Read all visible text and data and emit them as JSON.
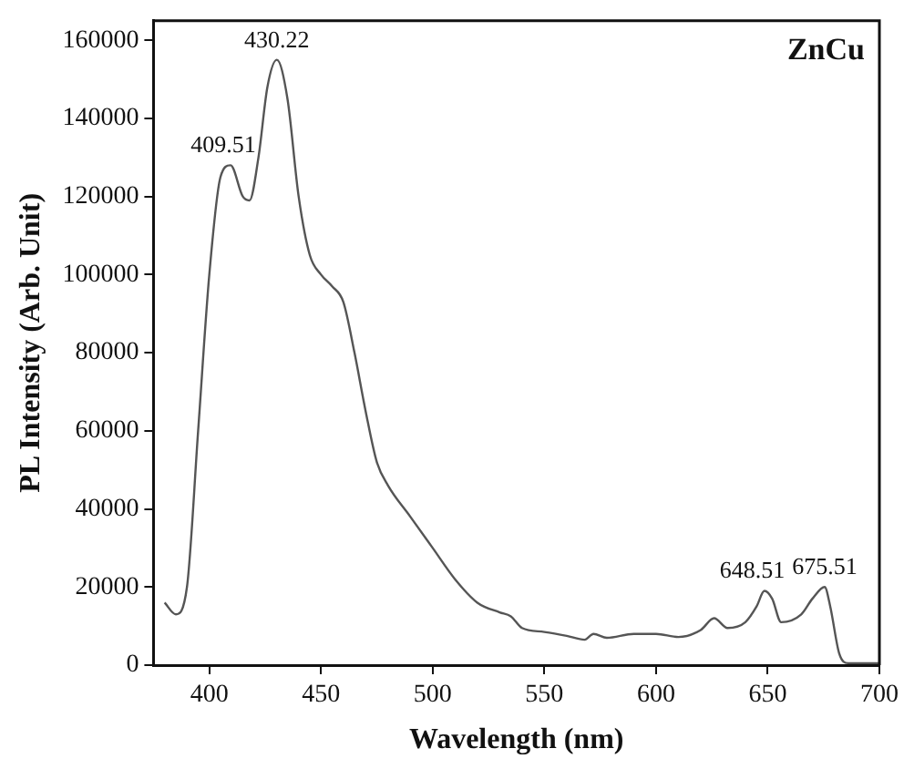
{
  "chart_data": {
    "type": "line",
    "title": "ZnCu",
    "xlabel": "Wavelength (nm)",
    "ylabel": "PL Intensity (Arb. Unit)",
    "xlim": [
      375,
      700
    ],
    "xticks": [
      400,
      450,
      500,
      550,
      600,
      650,
      700
    ],
    "ylim": [
      0,
      165000
    ],
    "yticks": [
      0,
      20000,
      40000,
      60000,
      80000,
      100000,
      120000,
      140000,
      160000
    ],
    "grid": false,
    "legend": false,
    "marker": "none",
    "line_style": "solid",
    "series": [
      {
        "color": "#555555",
        "x": [
          380,
          385,
          390,
          395,
          400,
          405,
          409.51,
          415,
          418,
          422,
          426,
          430.22,
          435,
          440,
          445,
          450,
          455,
          460,
          465,
          470,
          475,
          480,
          490,
          500,
          510,
          520,
          530,
          535,
          540,
          550,
          560,
          568,
          572,
          578,
          590,
          600,
          610,
          620,
          626,
          632,
          640,
          645,
          648.51,
          652,
          656,
          665,
          670,
          675.51,
          678,
          682,
          686,
          700
        ],
        "values": [
          16000,
          13000,
          20000,
          60000,
          100000,
          125000,
          128000,
          120000,
          119000,
          130000,
          148000,
          155000,
          145000,
          120000,
          105000,
          100000,
          97000,
          93000,
          80000,
          65000,
          52000,
          46000,
          38000,
          30000,
          22000,
          16000,
          13500,
          12500,
          9500,
          8500,
          7500,
          6500,
          8000,
          7000,
          8000,
          8000,
          7200,
          9000,
          12000,
          9500,
          11000,
          15000,
          19000,
          17000,
          11000,
          13000,
          17000,
          20000,
          15000,
          3000,
          500,
          500
        ]
      }
    ],
    "annotations": [
      {
        "text": "409.51",
        "x": 409.51,
        "y": 128000
      },
      {
        "text": "430.22",
        "x": 430.22,
        "y": 155000
      },
      {
        "text": "648.51",
        "x": 648.51,
        "y": 19000
      },
      {
        "text": "675.51",
        "x": 675.51,
        "y": 20000
      }
    ]
  }
}
